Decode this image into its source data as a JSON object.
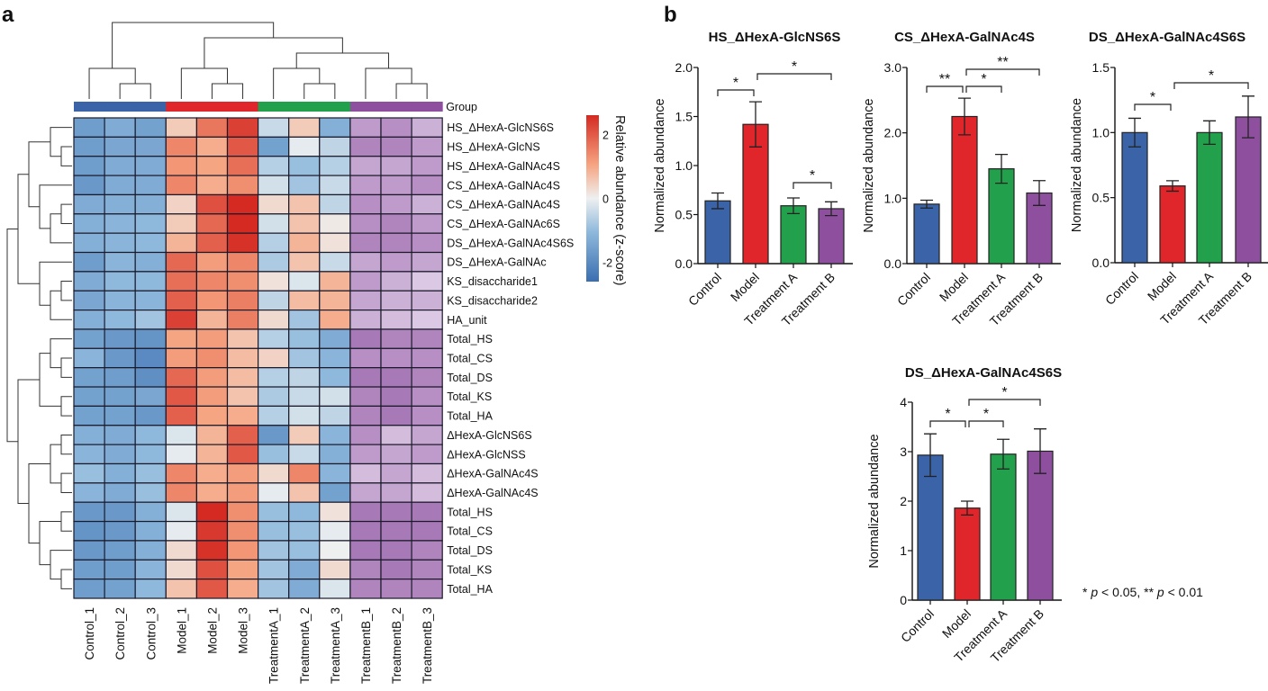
{
  "panels": {
    "a": "a",
    "b": "b"
  },
  "chart_data": [
    {
      "type": "heatmap",
      "columns": [
        "Control_1",
        "Control_2",
        "Control_3",
        "Model_1",
        "Model_2",
        "Model_3",
        "TreatmentA_1",
        "TreatmentA_2",
        "TreatmentA_3",
        "TreatmentB_1",
        "TreatmentB_2",
        "TreatmentB_3"
      ],
      "column_groups": [
        "Control",
        "Control",
        "Control",
        "Model",
        "Model",
        "Model",
        "Treatment A",
        "Treatment A",
        "Treatment A",
        "Treatment B",
        "Treatment B",
        "Treatment B"
      ],
      "group_label": "Group",
      "group_colors": {
        "Control": "#3a63a8",
        "Model": "#e0262b",
        "Treatment A": "#22a04b",
        "Treatment B": "#8e4f9f"
      },
      "rows": [
        "HS_ΔHexA-GlcNS6S",
        "HS_ΔHexA-GlcNS",
        "HS_ΔHexA-GalNAc4S",
        "CS_ΔHexA-GalNAc4S",
        "CS_ΔHexA-GalNAc4S",
        "CS_ΔHexA-GalNAc6S",
        "DS_ΔHexA-GalNAc4S6S",
        "DS_ΔHexA-GalNAc",
        "KS_disaccharide1",
        "KS_disaccharide2",
        "HA_unit",
        "Total_HS",
        "Total_CS",
        "Total_DS",
        "Total_KS",
        "Total_HA",
        "ΔHexA-GlcNS6S",
        "ΔHexA-GlcNSS",
        "ΔHexA-GalNAc4S",
        "ΔHexA-GalNAc4S",
        "Total_HS",
        "Total_CS",
        "Total_DS",
        "Total_KS",
        "Total_HA"
      ],
      "values": [
        [
          -1.6,
          -1.3,
          -1.5,
          0.5,
          1.6,
          2.3,
          -0.4,
          0.5,
          -1.2,
          -0.5,
          -0.6,
          -0.3
        ],
        [
          -1.6,
          -1.4,
          -1.4,
          1.4,
          0.9,
          2.0,
          -1.5,
          -0.1,
          -0.5,
          -0.7,
          -0.7,
          -0.5
        ],
        [
          -1.6,
          -1.3,
          -1.3,
          1.2,
          1.0,
          1.7,
          -0.6,
          -0.9,
          -0.6,
          -0.4,
          -0.4,
          -0.5
        ],
        [
          -1.7,
          -1.3,
          -1.3,
          1.4,
          0.9,
          1.3,
          -0.3,
          -0.8,
          -0.4,
          -0.5,
          -0.5,
          -0.6
        ],
        [
          -1.3,
          -1.2,
          -1.2,
          0.4,
          2.1,
          2.6,
          0.3,
          0.6,
          -0.5,
          -0.6,
          -0.5,
          -0.3
        ],
        [
          -1.2,
          -1.1,
          -1.0,
          0.5,
          1.8,
          2.6,
          -0.3,
          0.6,
          0.1,
          -0.6,
          -0.7,
          -0.5
        ],
        [
          -1.2,
          -1.1,
          -1.0,
          0.8,
          1.9,
          2.5,
          -0.6,
          0.8,
          0.2,
          -0.7,
          -0.7,
          -0.6
        ],
        [
          -1.6,
          -1.1,
          -1.2,
          1.8,
          1.1,
          1.4,
          -0.7,
          0.6,
          -0.4,
          -0.4,
          -0.5,
          -0.4
        ],
        [
          -1.3,
          -1.0,
          -1.0,
          1.7,
          1.4,
          1.3,
          0.2,
          -0.2,
          0.8,
          -0.5,
          -0.3,
          -0.1
        ],
        [
          -1.4,
          -1.1,
          -1.1,
          1.9,
          1.2,
          1.5,
          -0.5,
          0.7,
          0.8,
          -0.4,
          -0.3,
          -0.3
        ],
        [
          -1.2,
          -1.0,
          -0.8,
          2.3,
          0.8,
          1.5,
          0.3,
          -0.8,
          0.9,
          -0.3,
          -0.2,
          -0.1
        ],
        [
          -1.5,
          -1.7,
          -1.8,
          1.0,
          1.1,
          0.6,
          -0.6,
          -0.9,
          -1.3,
          -0.8,
          -0.7,
          -0.7
        ],
        [
          -1.1,
          -1.7,
          -2.0,
          1.1,
          1.3,
          0.7,
          0.4,
          -0.8,
          -1.1,
          -0.6,
          -0.6,
          -0.6
        ],
        [
          -1.5,
          -1.6,
          -1.9,
          1.8,
          1.1,
          0.7,
          -0.6,
          -0.5,
          -1.0,
          -0.8,
          -0.8,
          -0.7
        ],
        [
          -1.5,
          -1.5,
          -1.4,
          2.0,
          1.1,
          0.6,
          -0.7,
          -0.4,
          -0.3,
          -0.7,
          -0.8,
          -0.6
        ],
        [
          -1.5,
          -1.5,
          -1.7,
          1.9,
          1.0,
          0.9,
          -0.6,
          -0.3,
          -0.5,
          -0.7,
          -0.8,
          -0.6
        ],
        [
          -1.2,
          -1.3,
          -1.0,
          -0.2,
          0.8,
          1.9,
          -1.7,
          0.5,
          -1.1,
          -0.6,
          -0.2,
          -0.4
        ],
        [
          -1.1,
          -1.3,
          -1.0,
          -0.1,
          0.8,
          2.0,
          -0.9,
          -0.4,
          -1.2,
          -0.5,
          -0.4,
          -0.5
        ],
        [
          -0.9,
          -1.2,
          -0.9,
          1.4,
          0.9,
          1.1,
          0.3,
          1.4,
          -1.1,
          -0.2,
          -0.4,
          -0.2
        ],
        [
          -1.1,
          -1.3,
          -0.9,
          1.4,
          0.9,
          1.1,
          -0.1,
          0.6,
          -1.5,
          -0.4,
          -0.4,
          -0.2
        ],
        [
          -1.7,
          -1.7,
          -1.2,
          -0.2,
          2.6,
          1.3,
          -0.9,
          -1.0,
          0.2,
          -0.8,
          -0.8,
          -0.8
        ],
        [
          -1.8,
          -1.7,
          -1.2,
          -0.1,
          2.4,
          1.3,
          -0.9,
          -0.9,
          -0.1,
          -0.8,
          -0.8,
          -0.8
        ],
        [
          -1.7,
          -1.6,
          -1.2,
          0.3,
          2.5,
          1.2,
          -0.8,
          -0.9,
          0.0,
          -0.8,
          -0.8,
          -0.7
        ],
        [
          -1.6,
          -1.6,
          -1.1,
          0.3,
          2.1,
          1.0,
          -0.8,
          -1.3,
          0.3,
          -0.7,
          -0.8,
          -0.7
        ],
        [
          -1.6,
          -1.5,
          -1.0,
          0.6,
          2.0,
          0.9,
          -0.8,
          -1.3,
          -0.2,
          -0.7,
          -0.7,
          -0.7
        ]
      ],
      "colorbar": {
        "label": "Relative abundance (z-score)",
        "ticks": [
          "2",
          "0",
          "-2"
        ],
        "tick_values": [
          2,
          0,
          -2
        ],
        "range": [
          -2.6,
          2.6
        ],
        "colors": {
          "low": "#3a6eb0",
          "mid": "#eef0f0",
          "high": "#d42a22"
        }
      },
      "dendrograms": {
        "rows": true,
        "columns": true
      }
    },
    {
      "type": "bar",
      "title": "HS_ΔHexA-GlcNS6S",
      "ylabel": "Normalized abundance",
      "categories": [
        "Control",
        "Model",
        "Treatment A",
        "Treatment B"
      ],
      "values": [
        0.64,
        1.42,
        0.59,
        0.56
      ],
      "errors": [
        0.08,
        0.23,
        0.08,
        0.07
      ],
      "ylim": [
        0,
        2
      ],
      "yticks": [
        0,
        0.5,
        1,
        1.5,
        2
      ],
      "yticklabels": [
        "0.0",
        "0.5",
        "1.0",
        "1.5",
        "2.0"
      ],
      "significance": [
        {
          "from": "Control",
          "to": "Model",
          "label": "*"
        },
        {
          "from": "Model",
          "to": "Treatment B",
          "label": "*"
        },
        {
          "from": "Treatment A",
          "to": "Treatment B",
          "label": "*"
        }
      ]
    },
    {
      "type": "bar",
      "title": "CS_ΔHexA-GalNAc4S",
      "ylabel": "Normalized abundance",
      "categories": [
        "Control",
        "Model",
        "Treatment A",
        "Treatment B"
      ],
      "values": [
        0.91,
        2.25,
        1.45,
        1.08
      ],
      "errors": [
        0.06,
        0.28,
        0.22,
        0.19
      ],
      "ylim": [
        0,
        3
      ],
      "yticks": [
        0,
        1,
        2,
        3
      ],
      "yticklabels": [
        "0.0",
        "1.0",
        "2.0",
        "3.0"
      ],
      "significance": [
        {
          "from": "Control",
          "to": "Model",
          "label": "**"
        },
        {
          "from": "Model",
          "to": "Treatment A",
          "label": "*"
        },
        {
          "from": "Model",
          "to": "Treatment B",
          "label": "**"
        }
      ]
    },
    {
      "type": "bar",
      "title": "DS_ΔHexA-GalNAc4S6S",
      "ylabel": "Normalized abundance",
      "categories": [
        "Control",
        "Model",
        "Treatment A",
        "Treatment B"
      ],
      "values": [
        1.0,
        0.59,
        1.0,
        1.12
      ],
      "errors": [
        0.11,
        0.04,
        0.09,
        0.16
      ],
      "ylim": [
        0,
        1.5
      ],
      "yticks": [
        0,
        0.5,
        1,
        1.5
      ],
      "yticklabels": [
        "0.0",
        "0.5",
        "1.0",
        "1.5"
      ],
      "significance": [
        {
          "from": "Control",
          "to": "Model",
          "label": "*"
        },
        {
          "from": "Model",
          "to": "Treatment B",
          "label": "*"
        }
      ]
    },
    {
      "type": "bar",
      "title": "DS_ΔHexA-GalNAc4S6S",
      "ylabel": "Normalized abundance",
      "categories": [
        "Control",
        "Model",
        "Treatment A",
        "Treatment B"
      ],
      "values": [
        2.93,
        1.86,
        2.95,
        3.01
      ],
      "errors": [
        0.43,
        0.14,
        0.3,
        0.45
      ],
      "ylim": [
        0,
        4
      ],
      "yticks": [
        0,
        1,
        2,
        3,
        4
      ],
      "yticklabels": [
        "0",
        "1",
        "2",
        "3",
        "4"
      ],
      "significance": [
        {
          "from": "Control",
          "to": "Model",
          "label": "*"
        },
        {
          "from": "Model",
          "to": "Treatment A",
          "label": "*"
        },
        {
          "from": "Model",
          "to": "Treatment B",
          "label": "*"
        }
      ]
    }
  ],
  "bar_colors": [
    "#3a63a8",
    "#e0262b",
    "#22a04b",
    "#8e4f9f"
  ],
  "footnote": {
    "star1": "* ",
    "p1": "p",
    "t1": " < 0.05, ** ",
    "p2": "p",
    "t2": " < 0.01"
  }
}
